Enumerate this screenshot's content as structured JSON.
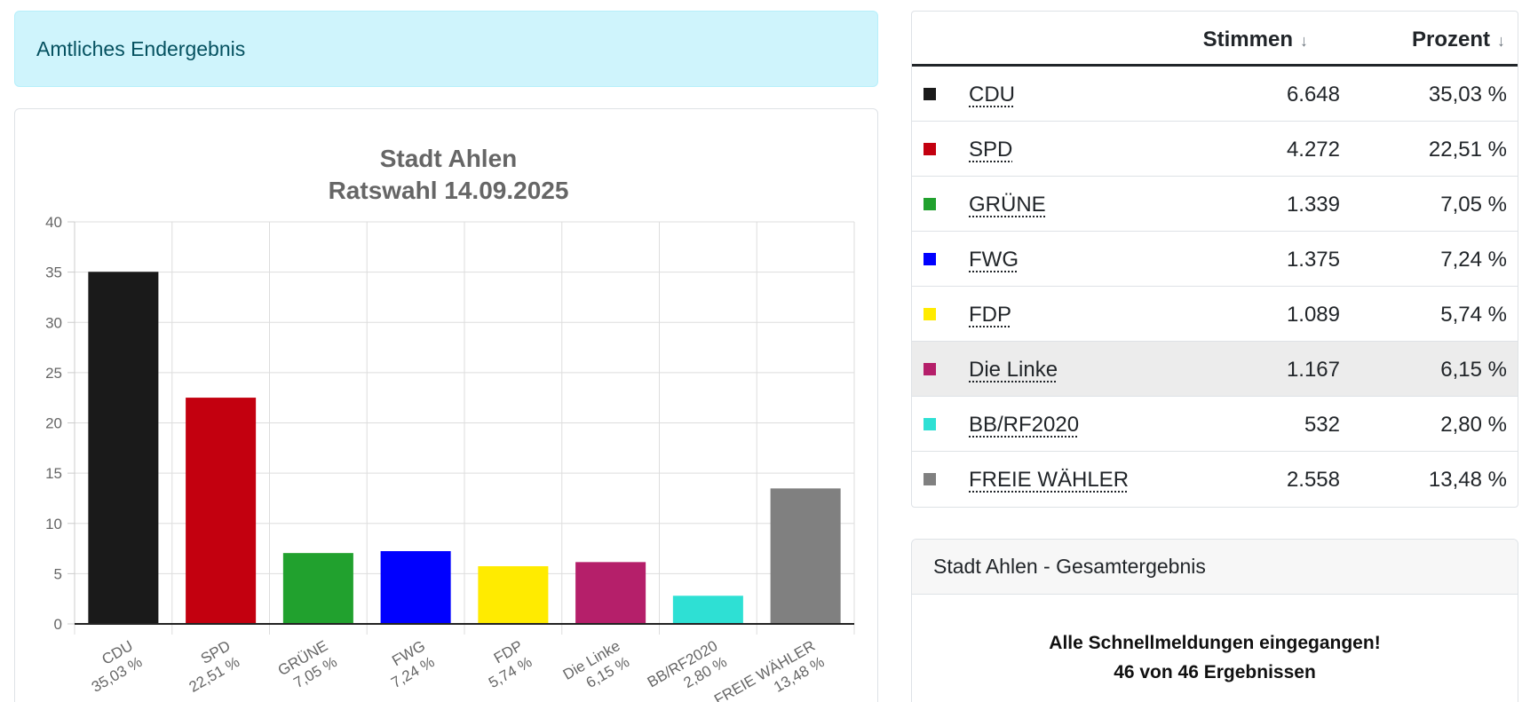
{
  "alert": {
    "text": "Amtliches Endergebnis"
  },
  "table": {
    "header": {
      "votes": "Stimmen",
      "percent": "Prozent",
      "sort_icon": "↓"
    },
    "rows": [
      {
        "party": "CDU",
        "votes": "6.648",
        "percent": "35,03 %",
        "color": "#1a1a1a"
      },
      {
        "party": "SPD",
        "votes": "4.272",
        "percent": "22,51 %",
        "color": "#c3000f"
      },
      {
        "party": "GRÜNE",
        "votes": "1.339",
        "percent": "7,05 %",
        "color": "#21a12e"
      },
      {
        "party": "FWG",
        "votes": "1.375",
        "percent": "7,24 %",
        "color": "#0000ff"
      },
      {
        "party": "FDP",
        "votes": "1.089",
        "percent": "5,74 %",
        "color": "#ffeb00"
      },
      {
        "party": "Die Linke",
        "votes": "1.167",
        "percent": "6,15 %",
        "color": "#b51f6a"
      },
      {
        "party": "BB/RF2020",
        "votes": "532",
        "percent": "2,80 %",
        "color": "#2ee0d4"
      },
      {
        "party": "FREIE WÄHLER",
        "votes": "2.558",
        "percent": "13,48 %",
        "color": "#808080"
      }
    ],
    "highlighted_row": 5
  },
  "total": {
    "header": "Stadt Ahlen - Gesamtergebnis",
    "line1": "Alle Schnellmeldungen eingegangen!",
    "line2": "46 von 46 Ergebnissen"
  },
  "chart_data": {
    "type": "bar",
    "title": "Stadt Ahlen",
    "subtitle": "Ratswahl 14.09.2025",
    "categories": [
      "CDU",
      "SPD",
      "GRÜNE",
      "FWG",
      "FDP",
      "Die Linke",
      "BB/RF2020",
      "FREIE WÄHLER"
    ],
    "tick_sublabels": [
      "35,03 %",
      "22,51 %",
      "7,05 %",
      "7,24 %",
      "5,74 %",
      "6,15 %",
      "2,80 %",
      "13,48 %"
    ],
    "values": [
      35.03,
      22.51,
      7.05,
      7.24,
      5.74,
      6.15,
      2.8,
      13.48
    ],
    "colors": [
      "#1a1a1a",
      "#c3000f",
      "#21a12e",
      "#0000ff",
      "#ffeb00",
      "#b51f6a",
      "#2ee0d4",
      "#808080"
    ],
    "ylim": [
      0,
      40
    ],
    "yticks": [
      0,
      5,
      10,
      15,
      20,
      25,
      30,
      35,
      40
    ],
    "grid": true,
    "xlabel": "",
    "ylabel": ""
  }
}
